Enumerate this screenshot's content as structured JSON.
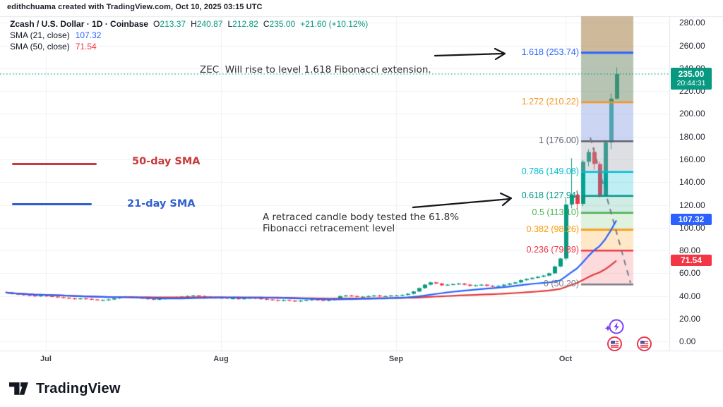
{
  "header": {
    "credit": "edithchuama created with TradingView.com, Oct 10, 2025 03:15 UTC"
  },
  "legend": {
    "symbol": "Zcash / U.S. Dollar · 1D · Coinbase",
    "o_label": "O",
    "o": "213.37",
    "h_label": "H",
    "h": "240.87",
    "l_label": "L",
    "l": "212.82",
    "c_label": "C",
    "c": "235.00",
    "change": "+21.60 (+10.12%)",
    "sma21_label": "SMA (21, close)",
    "sma21_value": "107.32",
    "sma50_label": "SMA (50, close)",
    "sma50_value": "71.54"
  },
  "annotations": {
    "fib_extension_note": "ZEC  Will rise to level 1.618 Fibonacci extension.",
    "retrace_note": "A retraced candle body tested the 61.8%\nFibonacci retracement level",
    "sma50_tag": "50-day SMA",
    "sma21_tag": "21-day SMA"
  },
  "price_axis": {
    "ticks": [
      "280.00",
      "260.00",
      "240.00",
      "220.00",
      "200.00",
      "180.00",
      "160.00",
      "140.00",
      "120.00",
      "100.00",
      "80.00",
      "60.00",
      "40.00",
      "20.00",
      "0.00"
    ],
    "last_price_badge": {
      "price": "235.00",
      "countdown": "20:44:31"
    },
    "sma21_badge": "107.32",
    "sma50_badge": "71.54"
  },
  "time_axis": {
    "labels": [
      "Jul",
      "Aug",
      "Sep",
      "Oct"
    ]
  },
  "watermark": {
    "brand": "TradingView"
  },
  "chart_data": {
    "type": "candlestick",
    "title": "Zcash / U.S. Dollar · 1D · Coinbase",
    "ylim": [
      -8,
      286
    ],
    "grid": true,
    "last_price": 235.0,
    "colors": {
      "up": "#089981",
      "down": "#f23645"
    },
    "sma": {
      "sma21_period": 21,
      "sma21_value": 107.32,
      "sma21_color": "#2962ff",
      "sma50_period": 50,
      "sma50_value": 71.54,
      "sma50_color": "#e23a3a"
    },
    "month_start_indices": [
      7,
      38,
      69,
      99
    ],
    "closes": [
      43,
      42,
      41.5,
      41,
      40.5,
      40,
      40.5,
      40,
      39.5,
      39,
      38.5,
      38,
      37.5,
      38,
      37.5,
      37,
      36.5,
      36.5,
      37,
      38,
      39,
      39.5,
      39,
      38.5,
      38,
      37.5,
      37,
      37.5,
      38,
      38.5,
      39,
      39.5,
      40,
      40.5,
      40,
      39.5,
      39,
      38.5,
      38.5,
      38,
      38,
      37.5,
      38,
      38.5,
      38,
      37.5,
      37,
      36.5,
      36,
      36.5,
      36,
      35.5,
      36,
      36.5,
      37,
      36.5,
      36,
      36.5,
      38,
      40,
      40.5,
      40,
      39.5,
      39.5,
      40,
      40.5,
      40,
      40,
      40.5,
      40.5,
      41,
      42,
      44,
      47,
      50,
      52,
      51,
      49.5,
      50,
      50.5,
      51,
      50,
      49,
      49.5,
      50,
      49,
      48.5,
      49,
      50,
      51,
      52,
      54,
      55,
      56,
      57,
      58,
      60,
      66,
      73,
      120.4,
      129,
      121,
      158,
      166.5,
      156,
      128.5,
      175,
      213.4,
      235
    ],
    "oct_ohlc": {
      "start_index": 99,
      "candles": [
        [
          73,
          126,
          71.5,
          120.4
        ],
        [
          120.4,
          161,
          117,
          129
        ],
        [
          129,
          133,
          116,
          121
        ],
        [
          121,
          159.5,
          119,
          158
        ],
        [
          158,
          169,
          154,
          166.5
        ],
        [
          166.5,
          171,
          151,
          156
        ],
        [
          156,
          158,
          126.5,
          128.5
        ],
        [
          128.5,
          177,
          127.5,
          175
        ],
        [
          175,
          218,
          169,
          213.4
        ],
        [
          213.37,
          240.87,
          212.82,
          235.0
        ]
      ]
    },
    "fib": {
      "zone_x": [
        823,
        897
      ],
      "levels": [
        {
          "ratio": 1.618,
          "value": 253.74,
          "label": "1.618 (253.74)",
          "color": "#2962ff"
        },
        {
          "ratio": 1.272,
          "value": 210.22,
          "label": "1.272 (210.22)",
          "color": "#f7941d"
        },
        {
          "ratio": 1,
          "value": 176.0,
          "label": "1 (176.00)",
          "color": "#5d606b"
        },
        {
          "ratio": 0.786,
          "value": 149.08,
          "label": "0.786 (149.08)",
          "color": "#00bcd4"
        },
        {
          "ratio": 0.618,
          "value": 127.94,
          "label": "0.618 (127.94)",
          "color": "#009688"
        },
        {
          "ratio": 0.5,
          "value": 113.1,
          "label": "0.5 (113.10)",
          "color": "#4caf50"
        },
        {
          "ratio": 0.382,
          "value": 98.26,
          "label": "0.382 (98.26)",
          "color": "#ff9800"
        },
        {
          "ratio": 0.236,
          "value": 79.89,
          "label": "0.236 (79.89)",
          "color": "#f23645"
        },
        {
          "ratio": 0,
          "value": 50.2,
          "label": "0 (50.20)",
          "color": "#787b86"
        }
      ],
      "band_colors": [
        "rgba(166,128,72,0.55)",
        "rgba(111,137,105,0.50)",
        "rgba(153,171,229,0.50)",
        "rgba(160,163,175,0.35)",
        "rgba(0,188,212,0.25)",
        "rgba(0,150,110,0.18)",
        "rgba(76,175,80,0.18)",
        "rgba(255,152,0,0.22)",
        "rgba(242,54,69,0.18)"
      ]
    }
  }
}
